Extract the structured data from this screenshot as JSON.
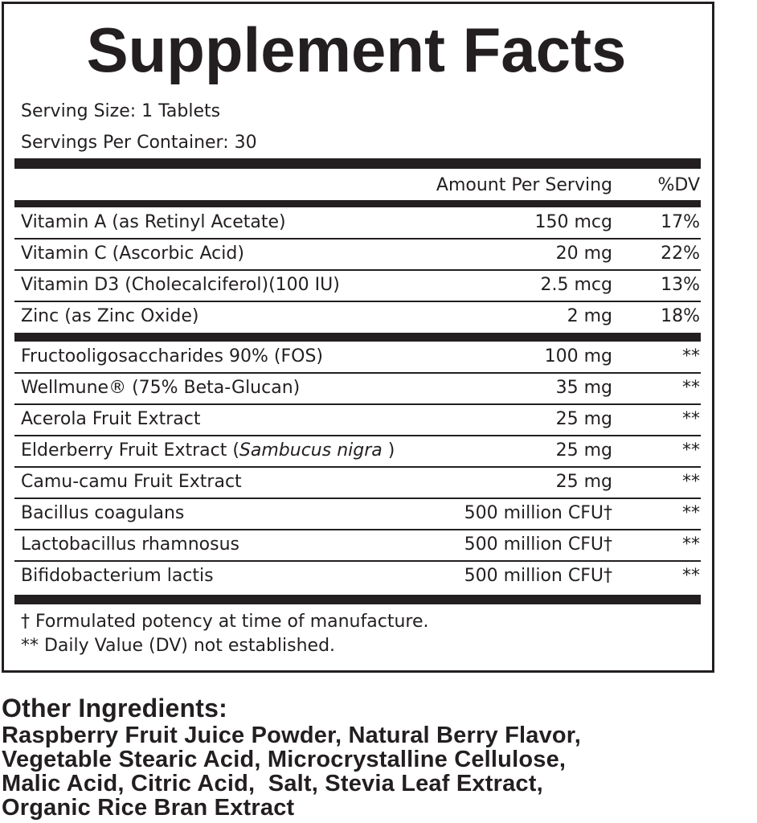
{
  "header": {
    "title": "Supplement Facts",
    "serving_size": "Serving Size: 1 Tablets",
    "servings_per_container": "Servings Per Container: 30"
  },
  "table": {
    "columns": [
      "Amount Per Serving",
      "%DV"
    ],
    "vitamins": [
      [
        "Vitamin A (as Retinyl Acetate)",
        "150 mcg",
        "17%"
      ],
      [
        "Vitamin C (Ascorbic Acid)",
        "20 mg",
        "22%"
      ],
      [
        "Vitamin D3 (Cholecalciferol)(100 IU)",
        "2.5 mcg",
        "13%"
      ],
      [
        "Zinc (as Zinc Oxide)",
        "2 mg",
        "18%"
      ]
    ],
    "others": [
      [
        "Fructooligosaccharides 90% (FOS)",
        "100 mg",
        "**"
      ],
      [
        "Wellmune® (75% Beta-Glucan)",
        "35 mg",
        "**"
      ],
      [
        "Acerola Fruit Extract",
        "25 mg",
        "**"
      ],
      [
        [
          "Elderberry Fruit Extract (",
          "Sambucus nigra",
          " )"
        ],
        "25 mg",
        "**"
      ],
      [
        "Camu-camu Fruit Extract",
        "25 mg",
        "**"
      ],
      [
        "Bacillus coagulans",
        "500 million CFU†",
        "**"
      ],
      [
        "Lactobacillus rhamnosus",
        "500 million CFU†",
        "**"
      ],
      [
        "Bifidobacterium lactis",
        "500 million CFU†",
        "**"
      ]
    ]
  },
  "footnotes": [
    "† Formulated potency at time of manufacture.",
    "** Daily Value (DV) not established."
  ],
  "other_ingredients": {
    "title": "Other Ingredients:",
    "lines": [
      "Raspberry Fruit Juice Powder, Natural Berry Flavor,",
      "Vegetable Stearic Acid, Microcrystalline Cellulose,",
      "Malic Acid, Citric Acid,  Salt, Stevia Leaf Extract,",
      "Organic Rice Bran Extract"
    ]
  }
}
